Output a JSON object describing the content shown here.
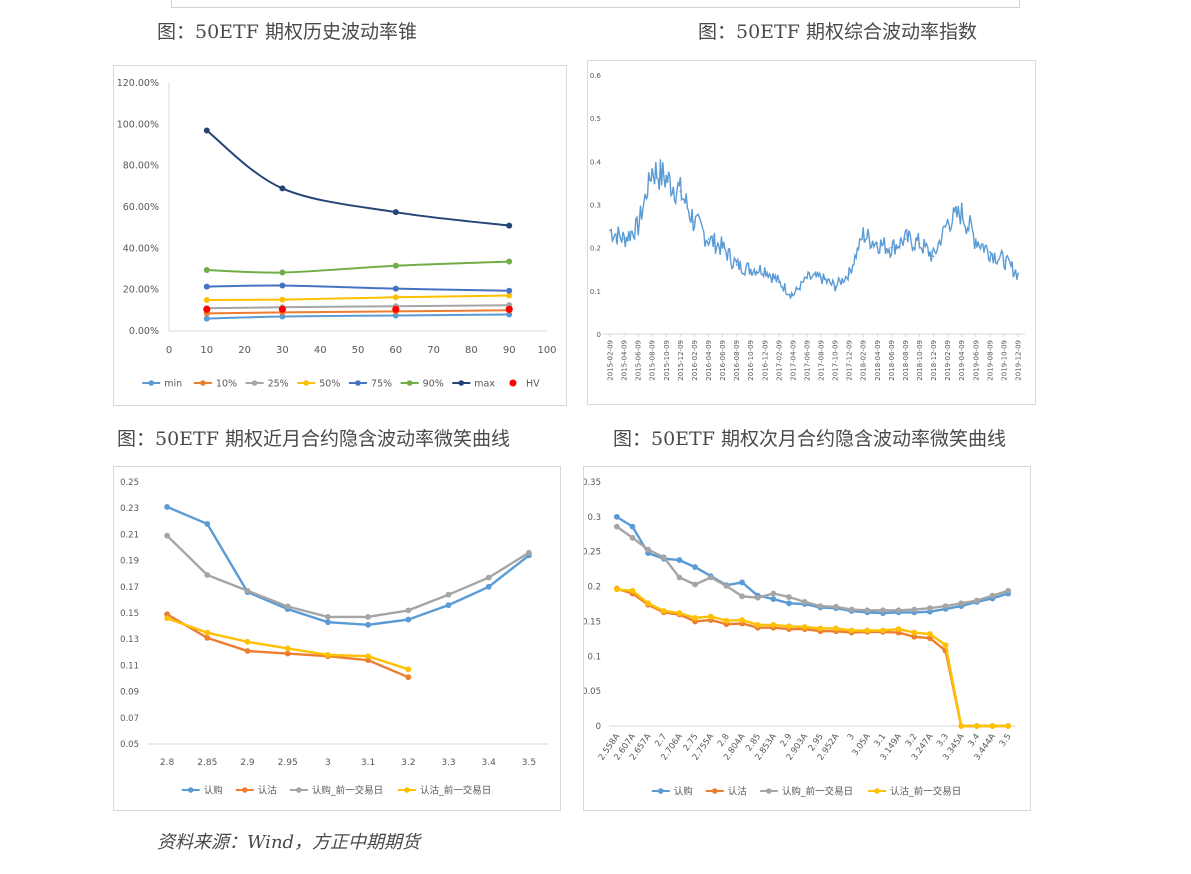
{
  "captions": {
    "c1": "图：50ETF 期权历史波动率锥",
    "c2": "图：50ETF 期权综合波动率指数",
    "c3": "图：50ETF 期权近月合约隐含波动率微笑曲线",
    "c4": "图：50ETF 期权次月合约隐含波动率微笑曲线"
  },
  "source": "资料来源：Wind，方正中期期货",
  "chart_data": [
    {
      "type": "line",
      "id": "cone",
      "x": [
        10,
        30,
        60,
        90
      ],
      "xlim": [
        0,
        100
      ],
      "xticks": [
        "0",
        "10",
        "20",
        "30",
        "40",
        "50",
        "60",
        "70",
        "80",
        "90",
        "100"
      ],
      "ylim": [
        0,
        120
      ],
      "yticks": [
        "0.00%",
        "20.00%",
        "40.00%",
        "60.00%",
        "80.00%",
        "100.00%",
        "120.00%"
      ],
      "legend_position": "bottom",
      "series": [
        {
          "name": "min",
          "color": "#5b9bd5",
          "values": [
            6.0,
            7.0,
            7.5,
            8.0
          ]
        },
        {
          "name": "10%",
          "color": "#ed7d31",
          "values": [
            8.5,
            9.0,
            9.5,
            10.0
          ]
        },
        {
          "name": "25%",
          "color": "#a5a5a5",
          "values": [
            11.0,
            11.5,
            12.0,
            12.5
          ]
        },
        {
          "name": "50%",
          "color": "#ffc000",
          "values": [
            15.0,
            15.2,
            16.3,
            17.2
          ]
        },
        {
          "name": "75%",
          "color": "#4472c4",
          "values": [
            21.5,
            22.0,
            20.5,
            19.5
          ]
        },
        {
          "name": "90%",
          "color": "#70ad47",
          "values": [
            29.5,
            28.3,
            31.6,
            33.6
          ]
        },
        {
          "name": "max",
          "color": "#264478",
          "values": [
            97.0,
            69.0,
            57.5,
            51.0
          ]
        },
        {
          "name": "HV",
          "color": "#ff0000",
          "marker_only": true,
          "values": [
            10.5,
            10.5,
            10.5,
            10.5
          ]
        }
      ]
    },
    {
      "type": "line",
      "id": "vix",
      "color": "#5b9bd5",
      "ylim": [
        0,
        0.6
      ],
      "yticks": [
        "0",
        "0.1",
        "0.2",
        "0.3",
        "0.4",
        "0.5",
        "0.6"
      ],
      "categories": [
        "2015-02-09",
        "2015-04-09",
        "2015-06-09",
        "2015-08-09",
        "2015-10-09",
        "2015-12-09",
        "2016-02-09",
        "2016-04-09",
        "2016-06-09",
        "2016-08-09",
        "2016-10-09",
        "2016-12-09",
        "2017-02-09",
        "2017-04-09",
        "2017-06-09",
        "2017-08-09",
        "2017-10-09",
        "2017-12-09",
        "2018-02-09",
        "2018-04-09",
        "2018-06-09",
        "2018-08-09",
        "2018-10-09",
        "2018-12-09",
        "2019-02-09",
        "2019-04-09",
        "2019-06-09",
        "2019-08-09",
        "2019-10-09",
        "2019-12-09"
      ],
      "values": [
        0.24,
        0.22,
        0.25,
        0.38,
        0.36,
        0.33,
        0.26,
        0.22,
        0.2,
        0.16,
        0.15,
        0.15,
        0.12,
        0.09,
        0.13,
        0.13,
        0.11,
        0.14,
        0.23,
        0.21,
        0.2,
        0.22,
        0.21,
        0.18,
        0.26,
        0.28,
        0.22,
        0.19,
        0.17,
        0.14
      ]
    },
    {
      "type": "line",
      "id": "near",
      "categories": [
        "2.8",
        "2.85",
        "2.9",
        "2.95",
        "3",
        "3.1",
        "3.2",
        "3.3",
        "3.4",
        "3.5"
      ],
      "ylim": [
        0.05,
        0.25
      ],
      "yticks": [
        "0.05",
        "0.07",
        "0.09",
        "0.11",
        "0.13",
        "0.15",
        "0.17",
        "0.19",
        "0.21",
        "0.23",
        "0.25"
      ],
      "legend_position": "bottom",
      "series": [
        {
          "name": "认购",
          "color": "#5b9bd5",
          "values": [
            0.231,
            0.218,
            0.166,
            0.153,
            0.143,
            0.141,
            0.145,
            0.156,
            0.17,
            0.194
          ]
        },
        {
          "name": "认沽",
          "color": "#ed7d31",
          "values": [
            0.149,
            0.131,
            0.121,
            0.119,
            0.117,
            0.114,
            0.101,
            null,
            null,
            null
          ]
        },
        {
          "name": "认购_前一交易日",
          "color": "#a5a5a5",
          "values": [
            0.209,
            0.179,
            0.167,
            0.155,
            0.147,
            0.147,
            0.152,
            0.164,
            0.177,
            0.196
          ]
        },
        {
          "name": "认沽_前一交易日",
          "color": "#ffc000",
          "values": [
            0.146,
            0.135,
            0.128,
            0.123,
            0.118,
            0.117,
            0.107,
            null,
            null,
            null
          ]
        }
      ]
    },
    {
      "type": "line",
      "id": "next",
      "categories": [
        "2.558A",
        "2.607A",
        "2.657A",
        "2.7",
        "2.706A",
        "2.75",
        "2.755A",
        "2.8",
        "2.804A",
        "2.85",
        "2.853A",
        "2.9",
        "2.903A",
        "2.95",
        "2.952A",
        "3",
        "3.05A",
        "3.1",
        "3.149A",
        "3.2",
        "3.247A",
        "3.3",
        "3.345A",
        "3.4",
        "3.444A",
        "3.5"
      ],
      "ylim": [
        0,
        0.35
      ],
      "yticks": [
        "0",
        "0.05",
        "0.1",
        "0.15",
        "0.2",
        "0.25",
        "0.3",
        "0.35"
      ],
      "legend_position": "bottom",
      "series": [
        {
          "name": "认购",
          "color": "#5b9bd5",
          "values": [
            0.3,
            0.286,
            0.248,
            0.24,
            0.238,
            0.228,
            0.215,
            0.202,
            0.206,
            0.187,
            0.182,
            0.176,
            0.175,
            0.17,
            0.169,
            0.165,
            0.163,
            0.162,
            0.163,
            0.163,
            0.164,
            0.168,
            0.172,
            0.178,
            0.183,
            0.19
          ]
        },
        {
          "name": "认沽",
          "color": "#ed7d31",
          "values": [
            0.197,
            0.19,
            0.174,
            0.163,
            0.16,
            0.15,
            0.152,
            0.146,
            0.147,
            0.141,
            0.141,
            0.139,
            0.139,
            0.136,
            0.136,
            0.134,
            0.135,
            0.135,
            0.134,
            0.128,
            0.126,
            0.108,
            0.0,
            0.0,
            0.0,
            0.0
          ]
        },
        {
          "name": "认购_前一交易日",
          "color": "#a5a5a5",
          "values": [
            0.286,
            0.27,
            0.253,
            0.242,
            0.213,
            0.203,
            0.213,
            0.201,
            0.186,
            0.184,
            0.19,
            0.185,
            0.178,
            0.172,
            0.171,
            0.167,
            0.166,
            0.166,
            0.166,
            0.167,
            0.169,
            0.172,
            0.176,
            0.18,
            0.187,
            0.194
          ]
        },
        {
          "name": "认沽_前一交易日",
          "color": "#ffc000",
          "values": [
            0.196,
            0.194,
            0.176,
            0.165,
            0.162,
            0.155,
            0.157,
            0.151,
            0.152,
            0.145,
            0.145,
            0.143,
            0.142,
            0.14,
            0.14,
            0.137,
            0.137,
            0.137,
            0.139,
            0.134,
            0.132,
            0.116,
            0.0,
            0.0,
            0.0,
            0.0
          ]
        }
      ]
    }
  ]
}
